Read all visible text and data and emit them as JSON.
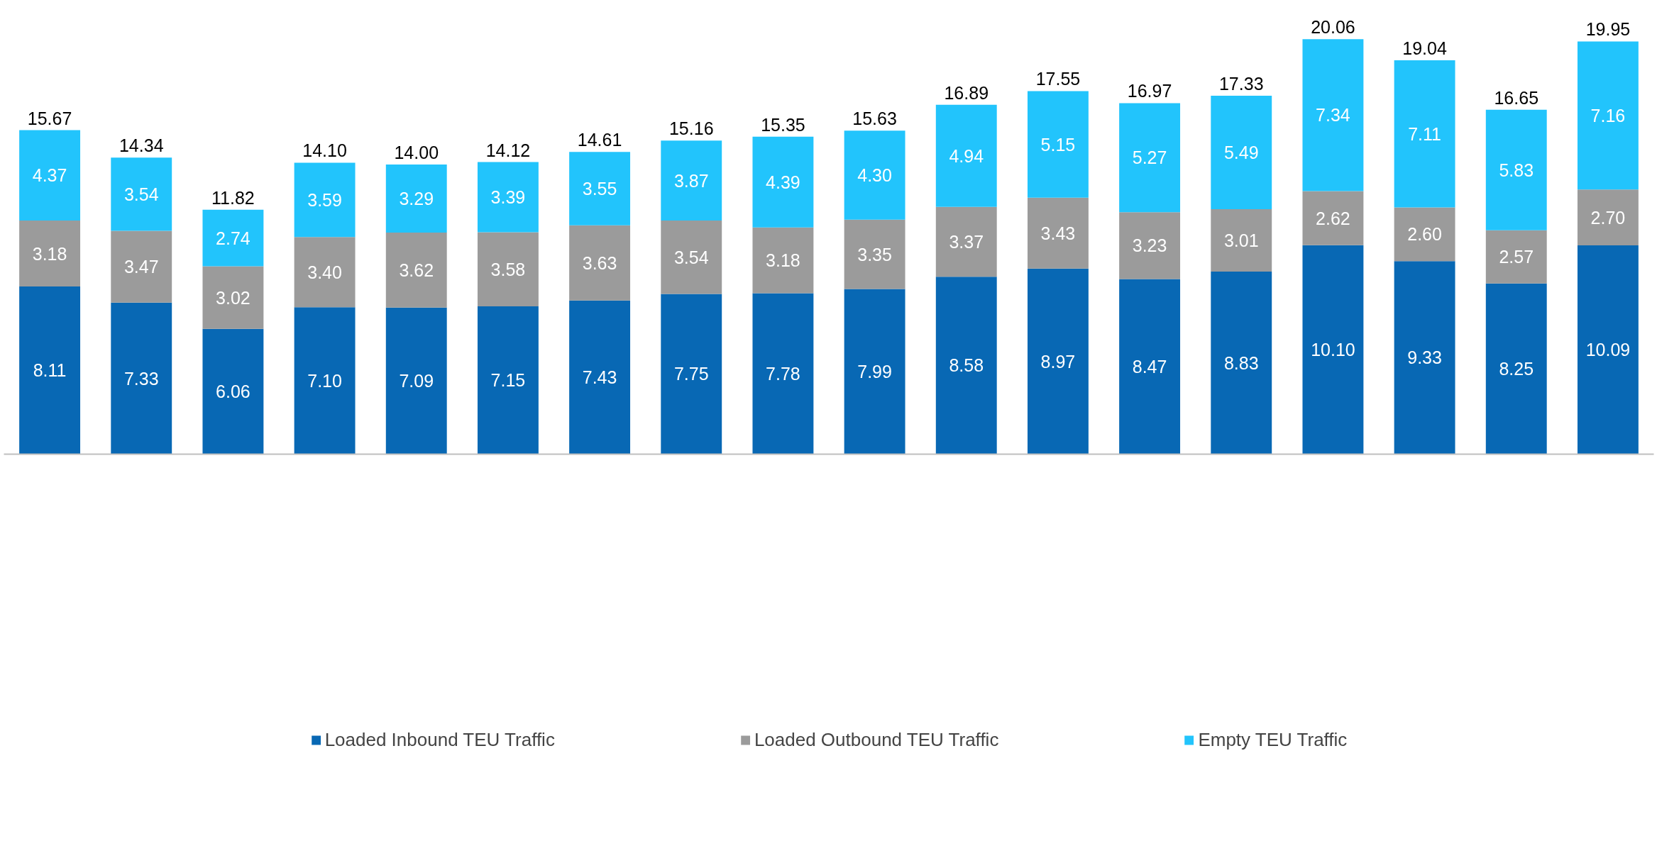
{
  "chart_data": {
    "type": "bar",
    "stacked": true,
    "categories": [
      null,
      null,
      null,
      null,
      null,
      null,
      null,
      null,
      null,
      null,
      null,
      null,
      null,
      null,
      null,
      null,
      null,
      null
    ],
    "series": [
      {
        "name": "Loaded Inbound TEU Traffic",
        "color": "#0868b4",
        "values": [
          8.11,
          7.33,
          6.06,
          7.1,
          7.09,
          7.15,
          7.43,
          7.75,
          7.78,
          7.99,
          8.58,
          8.97,
          8.47,
          8.83,
          10.1,
          9.33,
          8.25,
          10.09
        ],
        "value_labels": [
          "8.11",
          "7.33",
          "6.06",
          "7.10",
          "7.09",
          "7.15",
          "7.43",
          "7.75",
          "7.78",
          "7.99",
          "8.58",
          "8.97",
          "8.47",
          "8.83",
          "10.10",
          "9.33",
          "8.25",
          "10.09"
        ]
      },
      {
        "name": "Loaded Outbound TEU Traffic",
        "color": "#9b9b9b",
        "values": [
          3.18,
          3.47,
          3.02,
          3.4,
          3.62,
          3.58,
          3.63,
          3.54,
          3.18,
          3.35,
          3.37,
          3.43,
          3.23,
          3.01,
          2.62,
          2.6,
          2.57,
          2.7
        ],
        "value_labels": [
          "3.18",
          "3.47",
          "3.02",
          "3.40",
          "3.62",
          "3.58",
          "3.63",
          "3.54",
          "3.18",
          "3.35",
          "3.37",
          "3.43",
          "3.23",
          "3.01",
          "2.62",
          "2.60",
          "2.57",
          "2.70"
        ]
      },
      {
        "name": "Empty TEU Traffic",
        "color": "#22c4fc",
        "values": [
          4.37,
          3.54,
          2.74,
          3.59,
          3.29,
          3.39,
          3.55,
          3.87,
          4.39,
          4.3,
          4.94,
          5.15,
          5.27,
          5.49,
          7.34,
          7.11,
          5.83,
          7.16
        ],
        "value_labels": [
          "4.37",
          "3.54",
          "2.74",
          "3.59",
          "3.29",
          "3.39",
          "3.55",
          "3.87",
          "4.39",
          "4.30",
          "4.94",
          "5.15",
          "5.27",
          "5.49",
          "7.34",
          "7.11",
          "5.83",
          "7.16"
        ]
      }
    ],
    "totals": [
      "15.67",
      "14.34",
      "11.82",
      "14.10",
      "14.00",
      "14.12",
      "14.61",
      "15.16",
      "15.35",
      "15.63",
      "16.89",
      "17.55",
      "16.97",
      "17.33",
      "20.06",
      "19.04",
      "16.65",
      "19.95"
    ],
    "legend": "bottom",
    "grid": false
  }
}
